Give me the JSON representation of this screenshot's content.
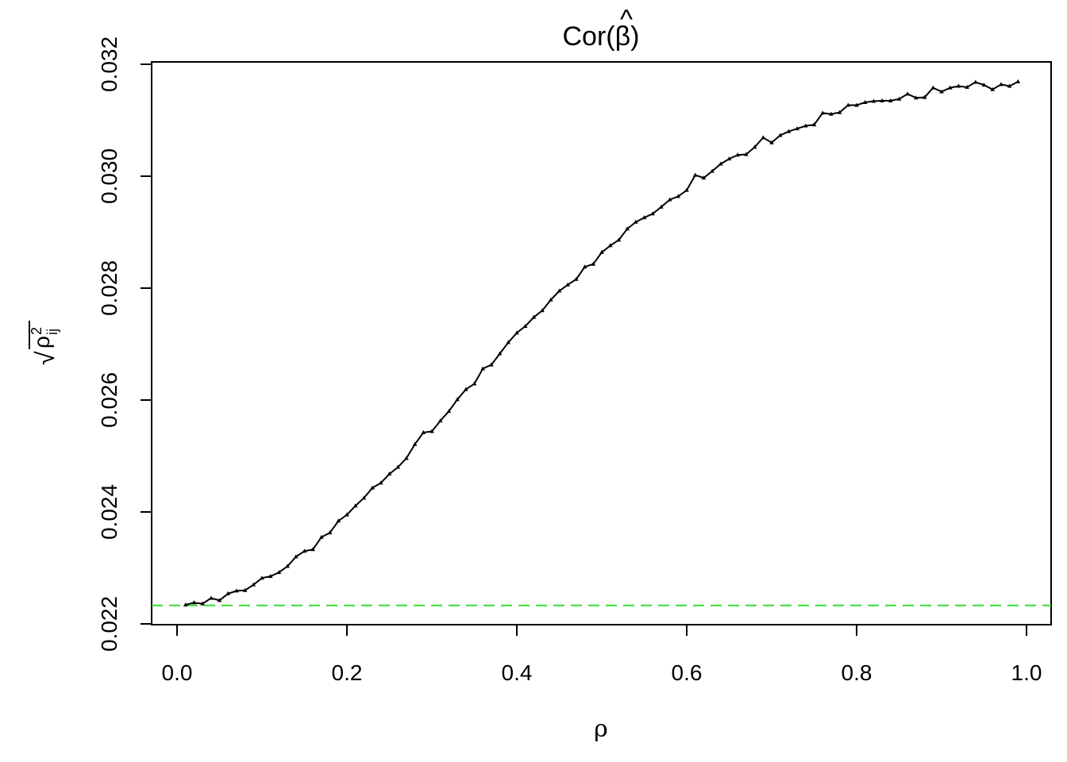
{
  "chart_data": {
    "type": "line",
    "title_prefix": "Cor(",
    "title_symbol": "β",
    "title_hat": "^",
    "title_suffix": ")",
    "xlabel": "ρ",
    "ylabel_radical": "√",
    "ylabel_base": "ρ",
    "ylabel_superscript": "2",
    "ylabel_subscript": "ij",
    "xlim": [
      0.0,
      1.0
    ],
    "ylim": [
      0.022,
      0.032
    ],
    "x_ticks": [
      "0.0",
      "0.2",
      "0.4",
      "0.6",
      "0.8",
      "1.0"
    ],
    "y_ticks": [
      "0.022",
      "0.024",
      "0.026",
      "0.028",
      "0.030",
      "0.032"
    ],
    "grid": false,
    "legend": "none",
    "reference_line": {
      "y": 0.02233,
      "color": "#33dd33",
      "style": "dashed"
    },
    "series": [
      {
        "color": "#000000",
        "marker": "triangle",
        "x": [
          0.01,
          0.02,
          0.03,
          0.04,
          0.05,
          0.06,
          0.07,
          0.08,
          0.09,
          0.1,
          0.11,
          0.12,
          0.13,
          0.14,
          0.15,
          0.16,
          0.17,
          0.18,
          0.19,
          0.2,
          0.21,
          0.22,
          0.23,
          0.24,
          0.25,
          0.26,
          0.27,
          0.28,
          0.29,
          0.3,
          0.31,
          0.32,
          0.33,
          0.34,
          0.35,
          0.36,
          0.37,
          0.38,
          0.39,
          0.4,
          0.41,
          0.42,
          0.43,
          0.44,
          0.45,
          0.46,
          0.47,
          0.48,
          0.49,
          0.5,
          0.51,
          0.52,
          0.53,
          0.54,
          0.55,
          0.56,
          0.57,
          0.58,
          0.59,
          0.6,
          0.61,
          0.62,
          0.63,
          0.64,
          0.65,
          0.66,
          0.67,
          0.68,
          0.69,
          0.7,
          0.71,
          0.72,
          0.73,
          0.74,
          0.75,
          0.76,
          0.77,
          0.78,
          0.79,
          0.8,
          0.81,
          0.82,
          0.83,
          0.84,
          0.85,
          0.86,
          0.87,
          0.88,
          0.89,
          0.9,
          0.91,
          0.92,
          0.93,
          0.94,
          0.95,
          0.96,
          0.97,
          0.98,
          0.99
        ],
        "y": [
          0.02234,
          0.02238,
          0.02236,
          0.02246,
          0.02242,
          0.02254,
          0.02259,
          0.0226,
          0.0227,
          0.02282,
          0.02285,
          0.02292,
          0.02303,
          0.0232,
          0.0233,
          0.02333,
          0.02355,
          0.02363,
          0.02384,
          0.02395,
          0.02411,
          0.02425,
          0.02443,
          0.02452,
          0.02468,
          0.0248,
          0.02496,
          0.02521,
          0.02542,
          0.02544,
          0.02563,
          0.0258,
          0.02601,
          0.02619,
          0.02629,
          0.02656,
          0.02663,
          0.02683,
          0.02703,
          0.0272,
          0.02732,
          0.02748,
          0.0276,
          0.02779,
          0.02795,
          0.02806,
          0.02816,
          0.02838,
          0.02843,
          0.02864,
          0.02876,
          0.02886,
          0.02906,
          0.02918,
          0.02926,
          0.02933,
          0.02945,
          0.02958,
          0.02964,
          0.02975,
          0.03002,
          0.02997,
          0.03009,
          0.03022,
          0.03031,
          0.03038,
          0.03039,
          0.03052,
          0.03069,
          0.0306,
          0.03073,
          0.0308,
          0.03085,
          0.0309,
          0.03092,
          0.03113,
          0.03111,
          0.03114,
          0.03127,
          0.03127,
          0.03132,
          0.03134,
          0.03135,
          0.03135,
          0.03138,
          0.03147,
          0.0314,
          0.03141,
          0.03158,
          0.03151,
          0.03158,
          0.03161,
          0.03159,
          0.03168,
          0.03163,
          0.03155,
          0.03164,
          0.03161,
          0.03169
        ]
      }
    ]
  }
}
